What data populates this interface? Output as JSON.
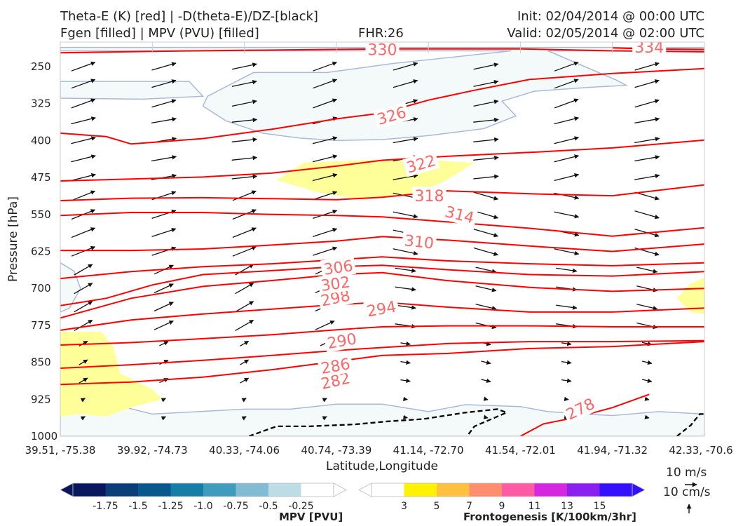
{
  "header": {
    "title_line1": "Theta-E (K) [red] | -D(theta-E)/DZ-[black]",
    "title_line2": "Fgen [filled] | MPV (PVU) [filled]",
    "fhr": "FHR:26",
    "init": "Init: 02/04/2014 @ 00:00 UTC",
    "valid": "Valid: 02/05/2014 @ 02:00 UTC"
  },
  "wind_scale": {
    "horizontal": "10 m/s",
    "vertical": "10 cm/s"
  },
  "colors": {
    "theta_e": "#ff0000",
    "theta_e_label": "#ff6666",
    "stability": "#000000",
    "vectors": "#111111",
    "mpv_fill": "#f4fafa",
    "mpv_edge": "#a9b9d8",
    "fgen_fill": "#ffff99"
  },
  "chart_data": {
    "type": "cross-section",
    "xlabel": "Latitude,Longitude",
    "ylabel": "Pressure [hPa]",
    "x_ticks": [
      "39.51, -75.38",
      "39.92, -74.73",
      "40.33, -74.06",
      "40.74, -73.39",
      "41.14, -72.70",
      "41.54, -72.01",
      "41.94, -71.32",
      "42.33, -70.6"
    ],
    "y_ticks": [
      250,
      325,
      400,
      475,
      550,
      625,
      700,
      775,
      850,
      925,
      1000
    ],
    "ylim": [
      1000,
      210
    ],
    "xlim": [
      0,
      7
    ],
    "theta_e_contours": [
      {
        "label": "282",
        "points": [
          [
            0,
            895
          ],
          [
            0.77,
            890
          ],
          [
            1.55,
            880
          ],
          [
            2.3,
            865
          ],
          [
            3,
            848
          ],
          [
            3.5,
            836
          ],
          [
            4.2,
            832
          ],
          [
            5.1,
            822
          ],
          [
            6,
            818
          ],
          [
            7,
            808
          ]
        ]
      },
      {
        "label": "286",
        "points": [
          [
            0,
            862
          ],
          [
            0.77,
            855
          ],
          [
            1.55,
            846
          ],
          [
            2.3,
            836
          ],
          [
            3,
            826
          ],
          [
            3.5,
            820
          ],
          [
            4.2,
            812
          ],
          [
            5.1,
            808
          ],
          [
            6,
            808
          ],
          [
            7,
            806
          ]
        ]
      },
      {
        "label": "290",
        "points": [
          [
            0,
            815
          ],
          [
            0.77,
            810
          ],
          [
            1.55,
            802
          ],
          [
            2.3,
            794
          ],
          [
            3,
            784
          ],
          [
            3.5,
            778
          ],
          [
            4.2,
            776
          ],
          [
            5.1,
            776
          ],
          [
            6,
            778
          ],
          [
            7,
            778
          ]
        ]
      },
      {
        "label": "294",
        "points": [
          [
            0,
            785
          ],
          [
            0.77,
            764
          ],
          [
            1.55,
            752
          ],
          [
            2.3,
            742
          ],
          [
            3,
            733
          ],
          [
            3.5,
            728
          ],
          [
            4.2,
            738
          ],
          [
            5.1,
            748
          ],
          [
            6,
            748
          ],
          [
            7,
            740
          ]
        ]
      },
      {
        "label": "298",
        "points": [
          [
            0,
            760
          ],
          [
            0.77,
            720
          ],
          [
            1.55,
            696
          ],
          [
            2.3,
            684
          ],
          [
            3,
            672
          ],
          [
            3.5,
            668
          ],
          [
            4.2,
            684
          ],
          [
            5.1,
            698
          ],
          [
            6,
            706
          ],
          [
            7,
            700
          ]
        ]
      },
      {
        "label": "302",
        "points": [
          [
            0,
            735
          ],
          [
            0.5,
            720
          ],
          [
            1,
            693
          ],
          [
            1.55,
            672
          ],
          [
            2.3,
            664
          ],
          [
            3,
            656
          ],
          [
            3.5,
            653
          ],
          [
            4.2,
            662
          ],
          [
            5.1,
            672
          ],
          [
            6,
            675
          ],
          [
            7,
            666
          ]
        ]
      },
      {
        "label": "306",
        "points": [
          [
            0,
            680
          ],
          [
            0.77,
            666
          ],
          [
            1.55,
            656
          ],
          [
            2.3,
            650
          ],
          [
            3,
            642
          ],
          [
            3.5,
            636
          ],
          [
            4.2,
            644
          ],
          [
            5.1,
            650
          ],
          [
            6,
            654
          ],
          [
            7,
            648
          ]
        ]
      },
      {
        "label": "310",
        "points": [
          [
            0,
            623
          ],
          [
            0.77,
            623
          ],
          [
            1.55,
            620
          ],
          [
            2.3,
            612
          ],
          [
            3,
            604
          ],
          [
            3.5,
            595
          ],
          [
            4.2,
            602
          ],
          [
            5.1,
            614
          ],
          [
            6,
            625
          ],
          [
            7,
            610
          ]
        ]
      },
      {
        "label": "314",
        "points": [
          [
            0,
            552
          ],
          [
            0.77,
            546
          ],
          [
            1.55,
            546
          ],
          [
            2.3,
            550
          ],
          [
            3,
            552
          ],
          [
            3.5,
            555
          ],
          [
            4.2,
            565
          ],
          [
            5.1,
            578
          ],
          [
            6,
            594
          ],
          [
            7,
            577
          ]
        ]
      },
      {
        "label": "318",
        "points": [
          [
            0,
            522
          ],
          [
            0.77,
            517
          ],
          [
            1.55,
            516
          ],
          [
            2.3,
            518
          ],
          [
            3,
            520
          ],
          [
            3.5,
            515
          ],
          [
            4.2,
            502
          ],
          [
            5.1,
            508
          ],
          [
            6,
            512
          ],
          [
            7,
            490
          ]
        ]
      },
      {
        "label": "322",
        "points": [
          [
            0,
            482
          ],
          [
            0.77,
            478
          ],
          [
            1.55,
            474
          ],
          [
            2.3,
            466
          ],
          [
            3,
            452
          ],
          [
            3.5,
            440
          ],
          [
            4.2,
            432
          ],
          [
            5.1,
            424
          ],
          [
            6,
            415
          ],
          [
            7,
            399
          ]
        ]
      },
      {
        "label": "326",
        "points": [
          [
            0,
            385
          ],
          [
            0.5,
            392
          ],
          [
            0.77,
            407
          ],
          [
            1.55,
            396
          ],
          [
            2.3,
            377
          ],
          [
            3,
            356
          ],
          [
            3.5,
            344
          ],
          [
            4,
            318
          ],
          [
            4.5,
            298
          ],
          [
            5.1,
            276
          ],
          [
            6,
            264
          ],
          [
            7,
            254
          ]
        ]
      },
      {
        "label": "330",
        "points": [
          [
            0,
            222
          ],
          [
            1,
            219
          ],
          [
            2,
            217
          ],
          [
            3,
            215
          ],
          [
            3.5,
            214
          ],
          [
            4,
            214
          ],
          [
            5,
            214
          ],
          [
            6,
            218
          ],
          [
            7,
            220
          ]
        ]
      },
      {
        "label": "334",
        "points": [
          [
            6,
            212
          ],
          [
            6.4,
            214
          ],
          [
            7,
            215
          ]
        ]
      },
      {
        "label": "278",
        "points": [
          [
            5,
            1000
          ],
          [
            5.25,
            975
          ],
          [
            5.6,
            962
          ],
          [
            6,
            942
          ],
          [
            6.4,
            915
          ]
        ]
      }
    ],
    "theta_e_labels": [
      {
        "text": "282",
        "x": 2.99,
        "y": 887,
        "angle": -13
      },
      {
        "text": "286",
        "x": 2.99,
        "y": 857,
        "angle": -10
      },
      {
        "text": "290",
        "x": 3.06,
        "y": 806,
        "angle": -10
      },
      {
        "text": "294",
        "x": 3.49,
        "y": 741,
        "angle": -10
      },
      {
        "text": "298",
        "x": 2.99,
        "y": 719,
        "angle": -12
      },
      {
        "text": "302",
        "x": 2.99,
        "y": 690,
        "angle": -8
      },
      {
        "text": "306",
        "x": 3.02,
        "y": 657,
        "angle": -8
      },
      {
        "text": "310",
        "x": 3.9,
        "y": 605,
        "angle": 6
      },
      {
        "text": "314",
        "x": 4.34,
        "y": 550,
        "angle": 14
      },
      {
        "text": "318",
        "x": 4.01,
        "y": 512,
        "angle": 0
      },
      {
        "text": "322",
        "x": 3.92,
        "y": 447,
        "angle": -16
      },
      {
        "text": "326",
        "x": 3.6,
        "y": 349,
        "angle": -16
      },
      {
        "text": "330",
        "x": 3.5,
        "y": 215,
        "angle": 0
      },
      {
        "text": "334",
        "x": 6.4,
        "y": 210,
        "angle": 0
      },
      {
        "text": "278",
        "x": 5.65,
        "y": 944,
        "angle": -26
      }
    ],
    "stability_contours": [
      {
        "points": [
          [
            2.05,
            1000
          ],
          [
            2.35,
            980
          ],
          [
            2.7,
            980
          ],
          [
            3.2,
            976
          ],
          [
            3.55,
            970
          ],
          [
            3.95,
            965
          ],
          [
            4.4,
            952
          ],
          [
            4.75,
            945
          ],
          [
            4.85,
            952
          ],
          [
            4.5,
            980
          ],
          [
            4.42,
            1000
          ]
        ]
      },
      {
        "points": [
          [
            6.7,
            1000
          ],
          [
            6.85,
            978
          ],
          [
            6.95,
            955
          ],
          [
            7,
            955
          ]
        ]
      }
    ],
    "mpv_regions": [
      {
        "points": [
          [
            0,
            218
          ],
          [
            3.4,
            218
          ],
          [
            4.9,
            218
          ],
          [
            3.6,
            244
          ],
          [
            2.9,
            262
          ],
          [
            2.1,
            262
          ],
          [
            1.6,
            310
          ],
          [
            1.55,
            330
          ],
          [
            1.8,
            360
          ],
          [
            2.2,
            385
          ],
          [
            2.6,
            395
          ],
          [
            3,
            400
          ],
          [
            3.5,
            398
          ],
          [
            4,
            390
          ],
          [
            4.6,
            376
          ],
          [
            4.95,
            350
          ],
          [
            4.8,
            320
          ],
          [
            5.15,
            300
          ],
          [
            5.75,
            292
          ],
          [
            6.15,
            288
          ],
          [
            6.05,
            278
          ],
          [
            5.7,
            250
          ],
          [
            5.3,
            218
          ],
          [
            7,
            218
          ],
          [
            7,
            211
          ],
          [
            0,
            211
          ]
        ]
      },
      {
        "points": [
          [
            0,
            280
          ],
          [
            1.4,
            280
          ],
          [
            1.55,
            310
          ],
          [
            0.9,
            316
          ],
          [
            0,
            314
          ]
        ]
      },
      {
        "points": [
          [
            0,
            900
          ],
          [
            0.35,
            925
          ],
          [
            1,
            955
          ],
          [
            1.5,
            950
          ],
          [
            2,
            945
          ],
          [
            2.5,
            945
          ],
          [
            3,
            935
          ],
          [
            3.5,
            935
          ],
          [
            4,
            950
          ],
          [
            4.4,
            936
          ],
          [
            5,
            940
          ],
          [
            5.3,
            950
          ],
          [
            5.7,
            955
          ],
          [
            6,
            958
          ],
          [
            6.5,
            950
          ],
          [
            7,
            955
          ],
          [
            7,
            1000
          ],
          [
            0,
            1000
          ]
        ]
      },
      {
        "points": [
          [
            0,
            648
          ],
          [
            0.15,
            665
          ],
          [
            0.22,
            700
          ],
          [
            0.1,
            740
          ],
          [
            0,
            748
          ]
        ]
      }
    ],
    "fgen_regions": [
      {
        "points": [
          [
            2.35,
            480
          ],
          [
            2.65,
            445
          ],
          [
            3.3,
            440
          ],
          [
            4,
            440
          ],
          [
            4.5,
            445
          ],
          [
            4.2,
            480
          ],
          [
            3.9,
            505
          ],
          [
            3.3,
            520
          ],
          [
            2.8,
            505
          ]
        ]
      },
      {
        "points": [
          [
            0,
            788
          ],
          [
            0.45,
            788
          ],
          [
            0.58,
            820
          ],
          [
            0.65,
            872
          ],
          [
            1.0,
            905
          ],
          [
            1.1,
            925
          ],
          [
            0.8,
            940
          ],
          [
            0.5,
            960
          ],
          [
            0.2,
            955
          ],
          [
            0,
            960
          ]
        ]
      },
      {
        "points": [
          [
            6.7,
            720
          ],
          [
            6.85,
            690
          ],
          [
            7,
            678
          ],
          [
            7,
            752
          ],
          [
            6.85,
            748
          ]
        ]
      }
    ],
    "mpv_colorbar": {
      "label": "MPV [PVU]",
      "ticks": [
        "-1.75",
        "-1.5",
        "-1.25",
        "-1.0",
        "-0.75",
        "-0.5",
        "-0.25"
      ],
      "colors": [
        "#08175e",
        "#0a3e76",
        "#08578d",
        "#167ea6",
        "#409cbd",
        "#82bbd2",
        "#bcdde5",
        "#ffffff"
      ]
    },
    "fgen_colorbar": {
      "label": "Frontogenesis [K/100km/3hr]",
      "ticks": [
        "3",
        "5",
        "7",
        "9",
        "11",
        "13",
        "15"
      ],
      "colors": [
        "#ffffff",
        "#fff200",
        "#ffc13e",
        "#ff8d6e",
        "#ff5ba5",
        "#d527e0",
        "#8a20f0",
        "#3311ff"
      ]
    }
  }
}
